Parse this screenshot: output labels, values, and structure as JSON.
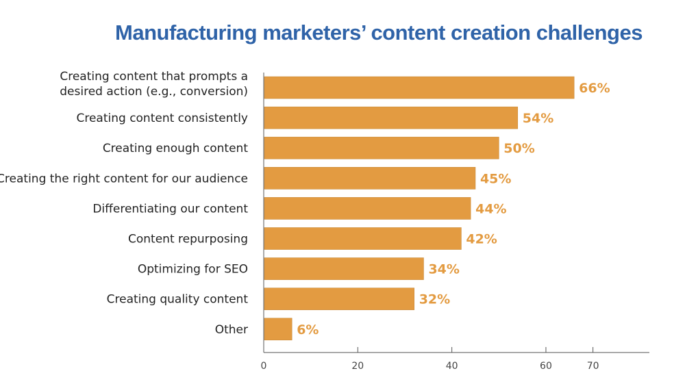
{
  "chart_data": {
    "type": "bar",
    "orientation": "horizontal",
    "title": "Manufacturing marketers’ content creation challenges",
    "categories": [
      "Creating content that prompts a\ndesired action (e.g., conversion)",
      "Creating content consistently",
      "Creating enough content",
      "Creating the right content for our audience",
      "Differentiating our content",
      "Content repurposing",
      "Optimizing for SEO",
      "Creating quality content",
      "Other"
    ],
    "values": [
      66,
      54,
      50,
      45,
      44,
      42,
      34,
      32,
      6
    ],
    "value_labels": [
      "66%",
      "54%",
      "50%",
      "45%",
      "44%",
      "42%",
      "34%",
      "32%",
      "6%"
    ],
    "xlim": [
      0,
      82
    ],
    "x_ticks": [
      0,
      20,
      40,
      60,
      70
    ],
    "x_tick_labels": [
      "0",
      "20",
      "40",
      "60",
      "70"
    ],
    "grid": false,
    "legend": "none"
  },
  "colors": {
    "bar": "#e39b41",
    "bar_edge": "#c98a38",
    "value_label": "#e39b41",
    "title": "#2f63a8",
    "axis": "#555555"
  }
}
